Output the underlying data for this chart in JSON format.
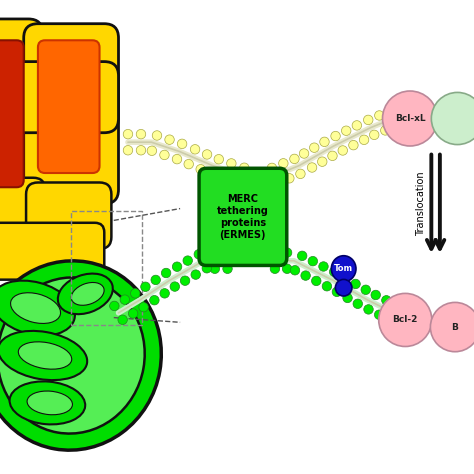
{
  "fig_width": 4.74,
  "fig_height": 4.74,
  "dpi": 100,
  "bg_color": "#ffffff",
  "er_color": "#FFD700",
  "er_outline": "#111111",
  "mito_outer_color": "#00DD00",
  "mito_outline": "#111111",
  "merc_box_color": "#22DD22",
  "merc_box_outline": "#005500",
  "merc_text": "MERC\ntethering\nproteins\n(ERMES)",
  "er_bead_color": "#FFFF99",
  "er_membrane_color": "#E8E8CC",
  "mito_bead_color": "#00EE00",
  "mito_membrane_color": "#CCEECC",
  "bcl_xl_color": "#FFB6C1",
  "bcl_xl_text": "Bcl-xL",
  "bcl2_color": "#FFB6C1",
  "bcl2_text": "Bcl-2",
  "tom_color": "#1111CC",
  "tom_text": "Tom",
  "translocation_text": "Translocation",
  "arrow_color": "#111111",
  "dashed_color": "#555555"
}
